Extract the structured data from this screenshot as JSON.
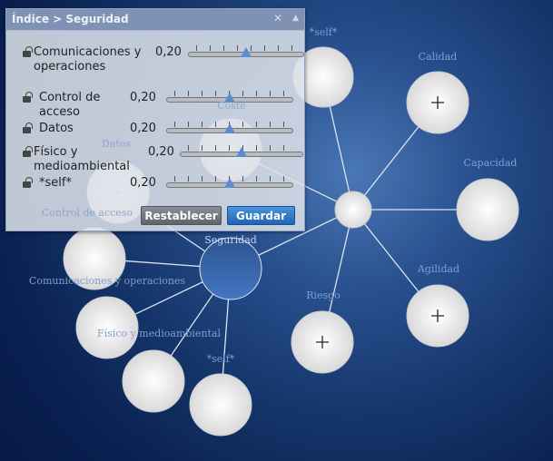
{
  "panel": {
    "breadcrumb": "Índice > Seguridad",
    "close_icon": "close-icon",
    "collapse_icon": "collapse-up-icon",
    "rows": [
      {
        "label": "Comunicaciones y operaciones",
        "value": "0,20",
        "level": 0.5
      },
      {
        "label": "Control de acceso",
        "value": "0,20",
        "level": 0.5
      },
      {
        "label": "Datos",
        "value": "0,20",
        "level": 0.5
      },
      {
        "label": "Físico y medioambiental",
        "value": "0,20",
        "level": 0.5
      },
      {
        "label": "*self*",
        "value": "0,20",
        "level": 0.5
      }
    ],
    "reset_label": "Restablecer",
    "save_label": "Guardar"
  },
  "graph": {
    "labels": {
      "self_top": "*self*",
      "calidad": "Calidad",
      "capacidad": "Capacidad",
      "agilidad": "Agilidad",
      "riesgo": "Riesgo",
      "coste": "Coste",
      "seguridad": "Seguridad",
      "datos": "Datos",
      "control": "Control de acceso",
      "comunicaciones": "Comunicaciones y operaciones",
      "fisico": "Físico y medioambiental",
      "self_bottom": "*self*"
    }
  },
  "colors": {
    "accent": "#3f6fc0",
    "save": "#2f78c8",
    "reset": "#6d737c"
  }
}
